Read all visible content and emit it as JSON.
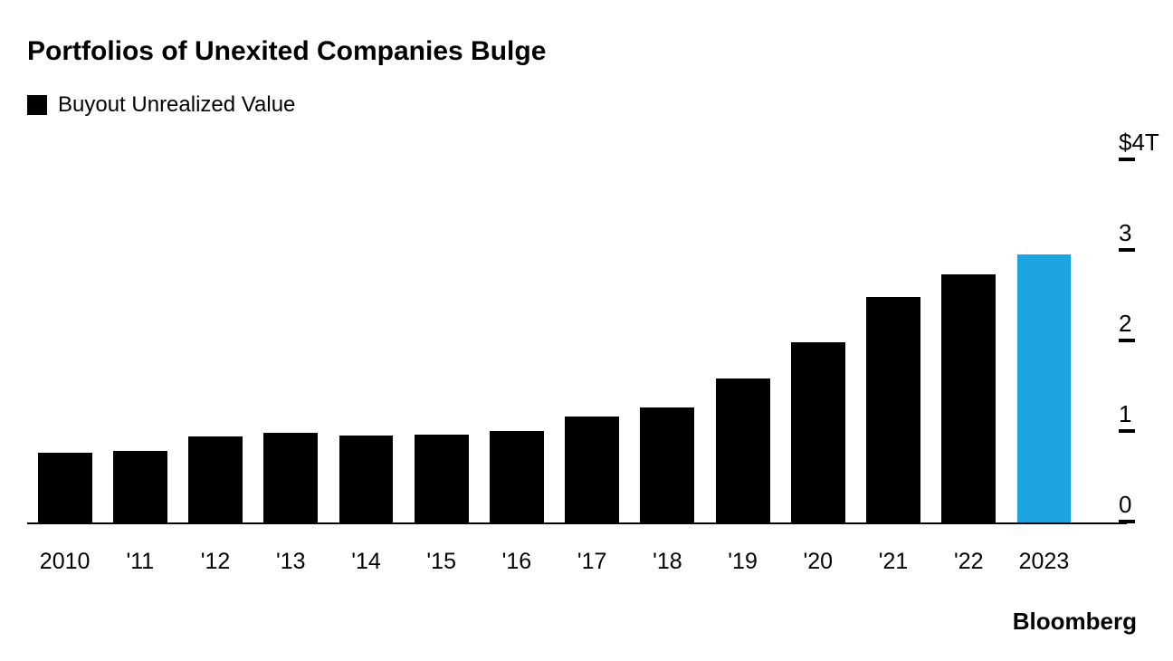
{
  "title": "Portfolios of Unexited Companies Bulge",
  "legend": {
    "label": "Buyout Unrealized Value",
    "swatch_color": "#000000"
  },
  "chart": {
    "type": "bar",
    "categories": [
      "2010",
      "'11",
      "'12",
      "'13",
      "'14",
      "'15",
      "'16",
      "'17",
      "'18",
      "'19",
      "'20",
      "'21",
      "'22",
      "2023"
    ],
    "values": [
      0.78,
      0.8,
      0.96,
      1.0,
      0.97,
      0.98,
      1.02,
      1.18,
      1.28,
      1.6,
      2.0,
      2.5,
      2.75,
      2.97
    ],
    "bar_colors": [
      "#000000",
      "#000000",
      "#000000",
      "#000000",
      "#000000",
      "#000000",
      "#000000",
      "#000000",
      "#000000",
      "#000000",
      "#000000",
      "#000000",
      "#000000",
      "#1ba4e0"
    ],
    "y_ticks": [
      {
        "value": 0,
        "label": "0"
      },
      {
        "value": 1,
        "label": "1"
      },
      {
        "value": 2,
        "label": "2"
      },
      {
        "value": 3,
        "label": "3"
      },
      {
        "value": 4,
        "label": "$4T"
      }
    ],
    "ylim": [
      0,
      4
    ],
    "tick_mark_color": "#000000",
    "baseline_color": "#000000",
    "background_color": "#ffffff",
    "axis_label_fontsize": 25,
    "title_fontsize": 30,
    "legend_fontsize": 24
  },
  "source": "Bloomberg"
}
